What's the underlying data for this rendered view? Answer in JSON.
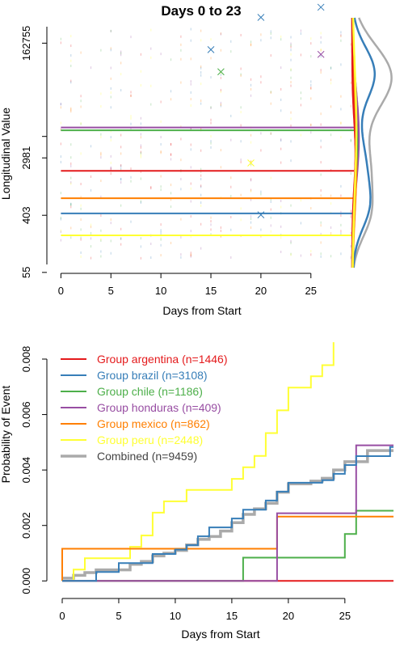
{
  "chart_data": [
    {
      "type": "scatter",
      "title": "Days 0 to 23",
      "xlabel": "Days from Start",
      "ylabel": "Longitudinal Value",
      "xlim": [
        -1,
        29.3
      ],
      "xticks": [
        0,
        5,
        10,
        15,
        20,
        25
      ],
      "ylim_log": [
        4.2,
        12.8
      ],
      "yticks": [
        {
          "label": "55",
          "value": 55
        },
        {
          "label": "403",
          "value": 403
        },
        {
          "label": "2981",
          "value": 2981
        },
        {
          "label": "162755",
          "value": 162755
        }
      ],
      "series": [
        {
          "name": "argentina",
          "color": "#e41a1c",
          "median": 1900
        },
        {
          "name": "brazil",
          "color": "#377eb8",
          "median": 430
        },
        {
          "name": "chile",
          "color": "#4daf4a",
          "median": 7800
        },
        {
          "name": "honduras",
          "color": "#984ea3",
          "median": 8600
        },
        {
          "name": "mexico",
          "color": "#ff7f00",
          "median": 730
        },
        {
          "name": "peru",
          "color": "#ffff33",
          "median": 200
        }
      ],
      "outliers": [
        {
          "series": "brazil",
          "x": 15,
          "y": 130000
        },
        {
          "series": "brazil",
          "x": 20,
          "y": 400000
        },
        {
          "series": "brazil",
          "x": 26,
          "y": 570000
        },
        {
          "series": "chile",
          "x": 16,
          "y": 60000
        },
        {
          "series": "honduras",
          "x": 26,
          "y": 110000
        },
        {
          "series": "peru",
          "x": 19,
          "y": 2500
        },
        {
          "series": "brazil",
          "x": 20,
          "y": 410
        }
      ]
    },
    {
      "type": "line",
      "subtype": "step",
      "title": "",
      "xlabel": "Days from Start",
      "ylabel": "Probability of Event",
      "xlim": [
        -1,
        29.3
      ],
      "xticks": [
        0,
        5,
        10,
        15,
        20,
        25
      ],
      "ylim": [
        -0.0004,
        0.0087
      ],
      "yticks": [
        "0.000",
        "0.002",
        "0.004",
        "0.006",
        "0.008"
      ],
      "series": [
        {
          "name": "argentina",
          "legend": "Group argentina (n=1446)",
          "color": "#e41a1c",
          "points": [
            [
              0,
              0
            ],
            [
              29.3,
              0
            ]
          ]
        },
        {
          "name": "brazil",
          "legend": "Group brazil (n=3108)",
          "color": "#377eb8",
          "points": [
            [
              0,
              0
            ],
            [
              3,
              0.00032
            ],
            [
              5,
              0.00064
            ],
            [
              8,
              0.00097
            ],
            [
              10,
              0.00113
            ],
            [
              11,
              0.00129
            ],
            [
              12,
              0.00161
            ],
            [
              13,
              0.00193
            ],
            [
              15,
              0.00225
            ],
            [
              16,
              0.00257
            ],
            [
              18,
              0.0029
            ],
            [
              19,
              0.00322
            ],
            [
              20,
              0.00354
            ],
            [
              23,
              0.00363
            ],
            [
              24,
              0.00386
            ],
            [
              25,
              0.00418
            ],
            [
              26,
              0.0045
            ],
            [
              29,
              0.00483
            ],
            [
              29.3,
              0.00483
            ]
          ]
        },
        {
          "name": "chile",
          "legend": "Group chile (n=1186)",
          "color": "#4daf4a",
          "points": [
            [
              0,
              0
            ],
            [
              16,
              0.00084
            ],
            [
              25,
              0.00169
            ],
            [
              26,
              0.00253
            ],
            [
              29.3,
              0.00253
            ]
          ]
        },
        {
          "name": "honduras",
          "legend": "Group honduras (n=409)",
          "color": "#984ea3",
          "points": [
            [
              0,
              0
            ],
            [
              19,
              0.00244
            ],
            [
              26,
              0.00489
            ],
            [
              29.3,
              0.00489
            ]
          ]
        },
        {
          "name": "mexico",
          "legend": "Group mexico (n=862)",
          "color": "#ff7f00",
          "points": [
            [
              0,
              0.00116
            ],
            [
              19,
              0.00232
            ],
            [
              29.3,
              0.00232
            ]
          ]
        },
        {
          "name": "peru",
          "legend": "Group peru (n=2448)",
          "color": "#ffff33",
          "points": [
            [
              0,
              0
            ],
            [
              1,
              0.00041
            ],
            [
              2,
              0.00082
            ],
            [
              6,
              0.00123
            ],
            [
              7,
              0.00164
            ],
            [
              8,
              0.00246
            ],
            [
              9,
              0.00287
            ],
            [
              11,
              0.00328
            ],
            [
              15,
              0.00368
            ],
            [
              16,
              0.0041
            ],
            [
              17,
              0.00451
            ],
            [
              18,
              0.00533
            ],
            [
              19,
              0.00615
            ],
            [
              20,
              0.00697
            ],
            [
              22,
              0.00738
            ],
            [
              23,
              0.00778
            ],
            [
              24,
              0.00861
            ]
          ]
        },
        {
          "name": "combined",
          "legend": "Combined (n=9459)",
          "color": "#aaaaaa",
          "points": [
            [
              0,
              0.0001
            ],
            [
              1,
              0.0002
            ],
            [
              2,
              0.0003
            ],
            [
              3,
              0.0004
            ],
            [
              6,
              0.0006
            ],
            [
              7,
              0.0007
            ],
            [
              8,
              0.0009
            ],
            [
              9,
              0.001
            ],
            [
              10,
              0.0011
            ],
            [
              11,
              0.0013
            ],
            [
              12,
              0.0015
            ],
            [
              13,
              0.0016
            ],
            [
              14,
              0.0018
            ],
            [
              15,
              0.0021
            ],
            [
              16,
              0.0024
            ],
            [
              17,
              0.0026
            ],
            [
              18,
              0.0028
            ],
            [
              19,
              0.0032
            ],
            [
              20,
              0.0035
            ],
            [
              22,
              0.0036
            ],
            [
              23,
              0.0037
            ],
            [
              24,
              0.004
            ],
            [
              25,
              0.0043
            ],
            [
              27,
              0.0047
            ],
            [
              29.3,
              0.0047
            ]
          ]
        }
      ]
    }
  ]
}
